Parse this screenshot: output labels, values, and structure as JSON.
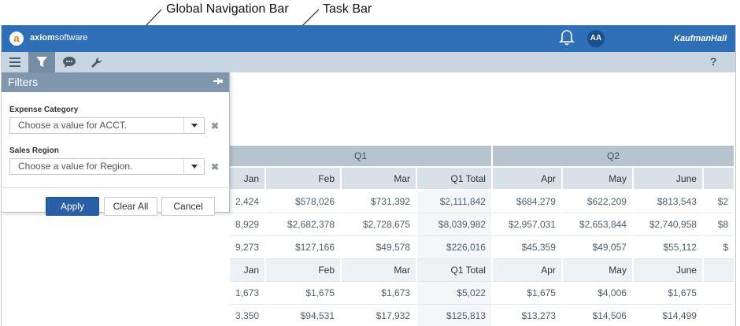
{
  "annotations": {
    "global_nav_label": "Global Navigation Bar",
    "task_bar_label": "Task Bar"
  },
  "global_nav": {
    "logo_letter": "a",
    "logo_brand_bold": "axiom",
    "logo_brand_rest": "software",
    "avatar_initials": "AA",
    "right_brand": "KaufmanHall",
    "bell_icon": "bell-icon"
  },
  "task_bar": {
    "buttons": [
      "menu-icon",
      "filter-icon",
      "comment-icon",
      "wrench-icon"
    ],
    "active": "filter-icon",
    "help_label": "?"
  },
  "filters": {
    "title": "Filters",
    "pin_icon": "pin-icon",
    "fields": [
      {
        "label": "Expense Category",
        "placeholder": "Choose a value for ACCT."
      },
      {
        "label": "Sales Region",
        "placeholder": "Choose a value for Region."
      }
    ],
    "apply_label": "Apply",
    "clear_all_label": "Clear All",
    "cancel_label": "Cancel"
  },
  "table": {
    "quarters": [
      "Q1",
      "Q2"
    ],
    "months_header": [
      "Jan",
      "Feb",
      "Mar",
      "Q1 Total",
      "Apr",
      "May",
      "June",
      ""
    ],
    "section1_rows": [
      [
        "2,424",
        "$578,026",
        "$731,392",
        "$2,111,842",
        "$684,279",
        "$622,209",
        "$813,543",
        "$2"
      ],
      [
        "8,929",
        "$2,682,378",
        "$2,728,675",
        "$8,039,982",
        "$2,957,031",
        "$2,653,844",
        "$2,740,958",
        "$8"
      ],
      [
        "9,273",
        "$127,166",
        "$49,578",
        "$226,016",
        "$45,359",
        "$49,057",
        "$55,112",
        "$"
      ]
    ],
    "section2_rows": [
      [
        "1,673",
        "$1,675",
        "$1,673",
        "$5,022",
        "$1,675",
        "$4,006",
        "$1,675",
        ""
      ],
      [
        "3,350",
        "$94,531",
        "$17,932",
        "$125,813",
        "$13,273",
        "$14,506",
        "$14,499",
        ""
      ]
    ]
  },
  "colors": {
    "global_nav": "#2e6fb8",
    "task_bar": "#c9d6e2",
    "active_tab": "#758ca5",
    "apply_button": "#2a5fa8"
  }
}
